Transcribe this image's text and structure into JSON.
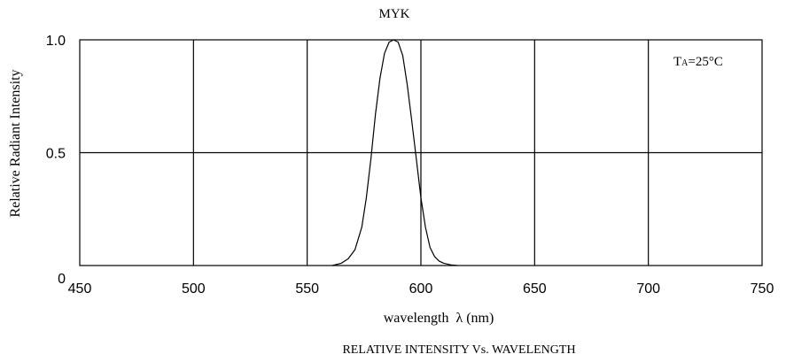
{
  "chart_data": {
    "type": "line",
    "title": "MYK",
    "subtitle": "RELATIVE INTENSITY Vs. WAVELENGTH",
    "xlabel": "wavelength  λ (nm)",
    "ylabel": "Relative  Radiant  Intensity",
    "annotation": "TA=25°C",
    "annotation_main": "T",
    "annotation_sub": "A",
    "annotation_rest": "=25°C",
    "xlim": [
      450,
      750
    ],
    "ylim": [
      0,
      1
    ],
    "x_ticks": [
      450,
      500,
      550,
      600,
      650,
      700,
      750
    ],
    "x_tick_labels": [
      "450",
      "500",
      "550",
      "600",
      "650",
      "700",
      "750"
    ],
    "y_ticks": [
      0,
      0.5,
      1.0
    ],
    "y_tick_labels": [
      "0",
      "0.5",
      "1.0"
    ],
    "grid": true,
    "series": [
      {
        "color": "#000000",
        "x": [
          561,
          565,
          568,
          571,
          574,
          576,
          578,
          580,
          582,
          584,
          586,
          588,
          590,
          592,
          594,
          596,
          598,
          600,
          602,
          604,
          606,
          608,
          610,
          613,
          616
        ],
        "y": [
          0.0,
          0.01,
          0.03,
          0.07,
          0.17,
          0.3,
          0.47,
          0.67,
          0.83,
          0.94,
          0.99,
          1.0,
          0.99,
          0.93,
          0.8,
          0.64,
          0.47,
          0.3,
          0.17,
          0.08,
          0.04,
          0.02,
          0.01,
          0.003,
          0.0
        ]
      }
    ]
  }
}
